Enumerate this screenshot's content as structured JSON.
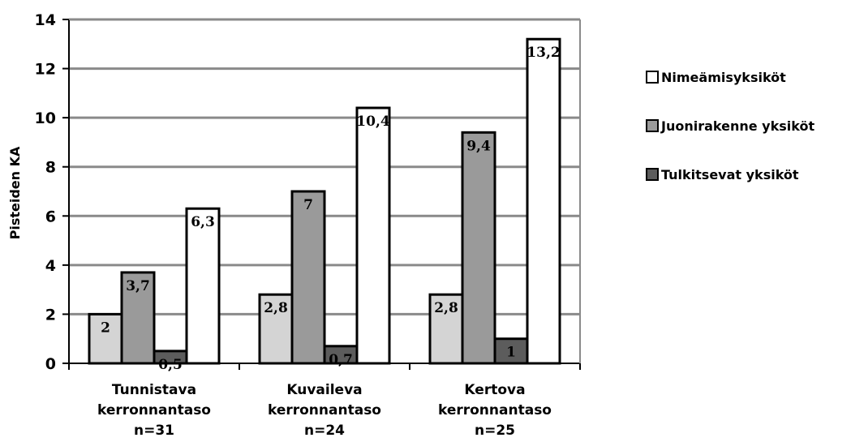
{
  "chart_data": {
    "type": "bar",
    "ylabel": "Pisteiden KA",
    "ylim": [
      0,
      14
    ],
    "yticks": [
      "0",
      "2",
      "4",
      "6",
      "8",
      "10",
      "12",
      "14"
    ],
    "grid": true,
    "legend_position": "right",
    "categories": [
      [
        "Tunnistava",
        "kerronnantaso",
        "n=31"
      ],
      [
        "Kuvaileva",
        "kerronnantaso",
        "n=24"
      ],
      [
        "Kertova",
        "kerronnantaso",
        "n=25"
      ]
    ],
    "series": [
      {
        "name": "Tulkitsevat yksiköt",
        "color": "#d4d4d4",
        "values": [
          2,
          2.8,
          2.8
        ],
        "labels": [
          "2",
          "2,8",
          "2,8"
        ]
      },
      {
        "name": "Juonirakenne yksiköt",
        "color": "#9a9a9a",
        "values": [
          3.7,
          7,
          9.4
        ],
        "labels": [
          "3,7",
          "7",
          "9,4"
        ]
      },
      {
        "name": "Tulkitsevat yksiköt",
        "color": "#5c5c5c",
        "values": [
          0.5,
          0.7,
          1
        ],
        "labels": [
          "0,5",
          "0,7",
          "1"
        ]
      },
      {
        "name": "Nimeämisyksiköt",
        "color": "#ffffff",
        "values": [
          6.3,
          10.4,
          13.2
        ],
        "labels": [
          "6,3",
          "10,4",
          "13,2"
        ]
      }
    ],
    "legend": [
      {
        "name": "Nimeämisyksiköt",
        "color": "#ffffff"
      },
      {
        "name": "Juonirakenne yksiköt",
        "color": "#9a9a9a"
      },
      {
        "name": "Tulkitsevat yksiköt",
        "color": "#5c5c5c"
      }
    ]
  }
}
